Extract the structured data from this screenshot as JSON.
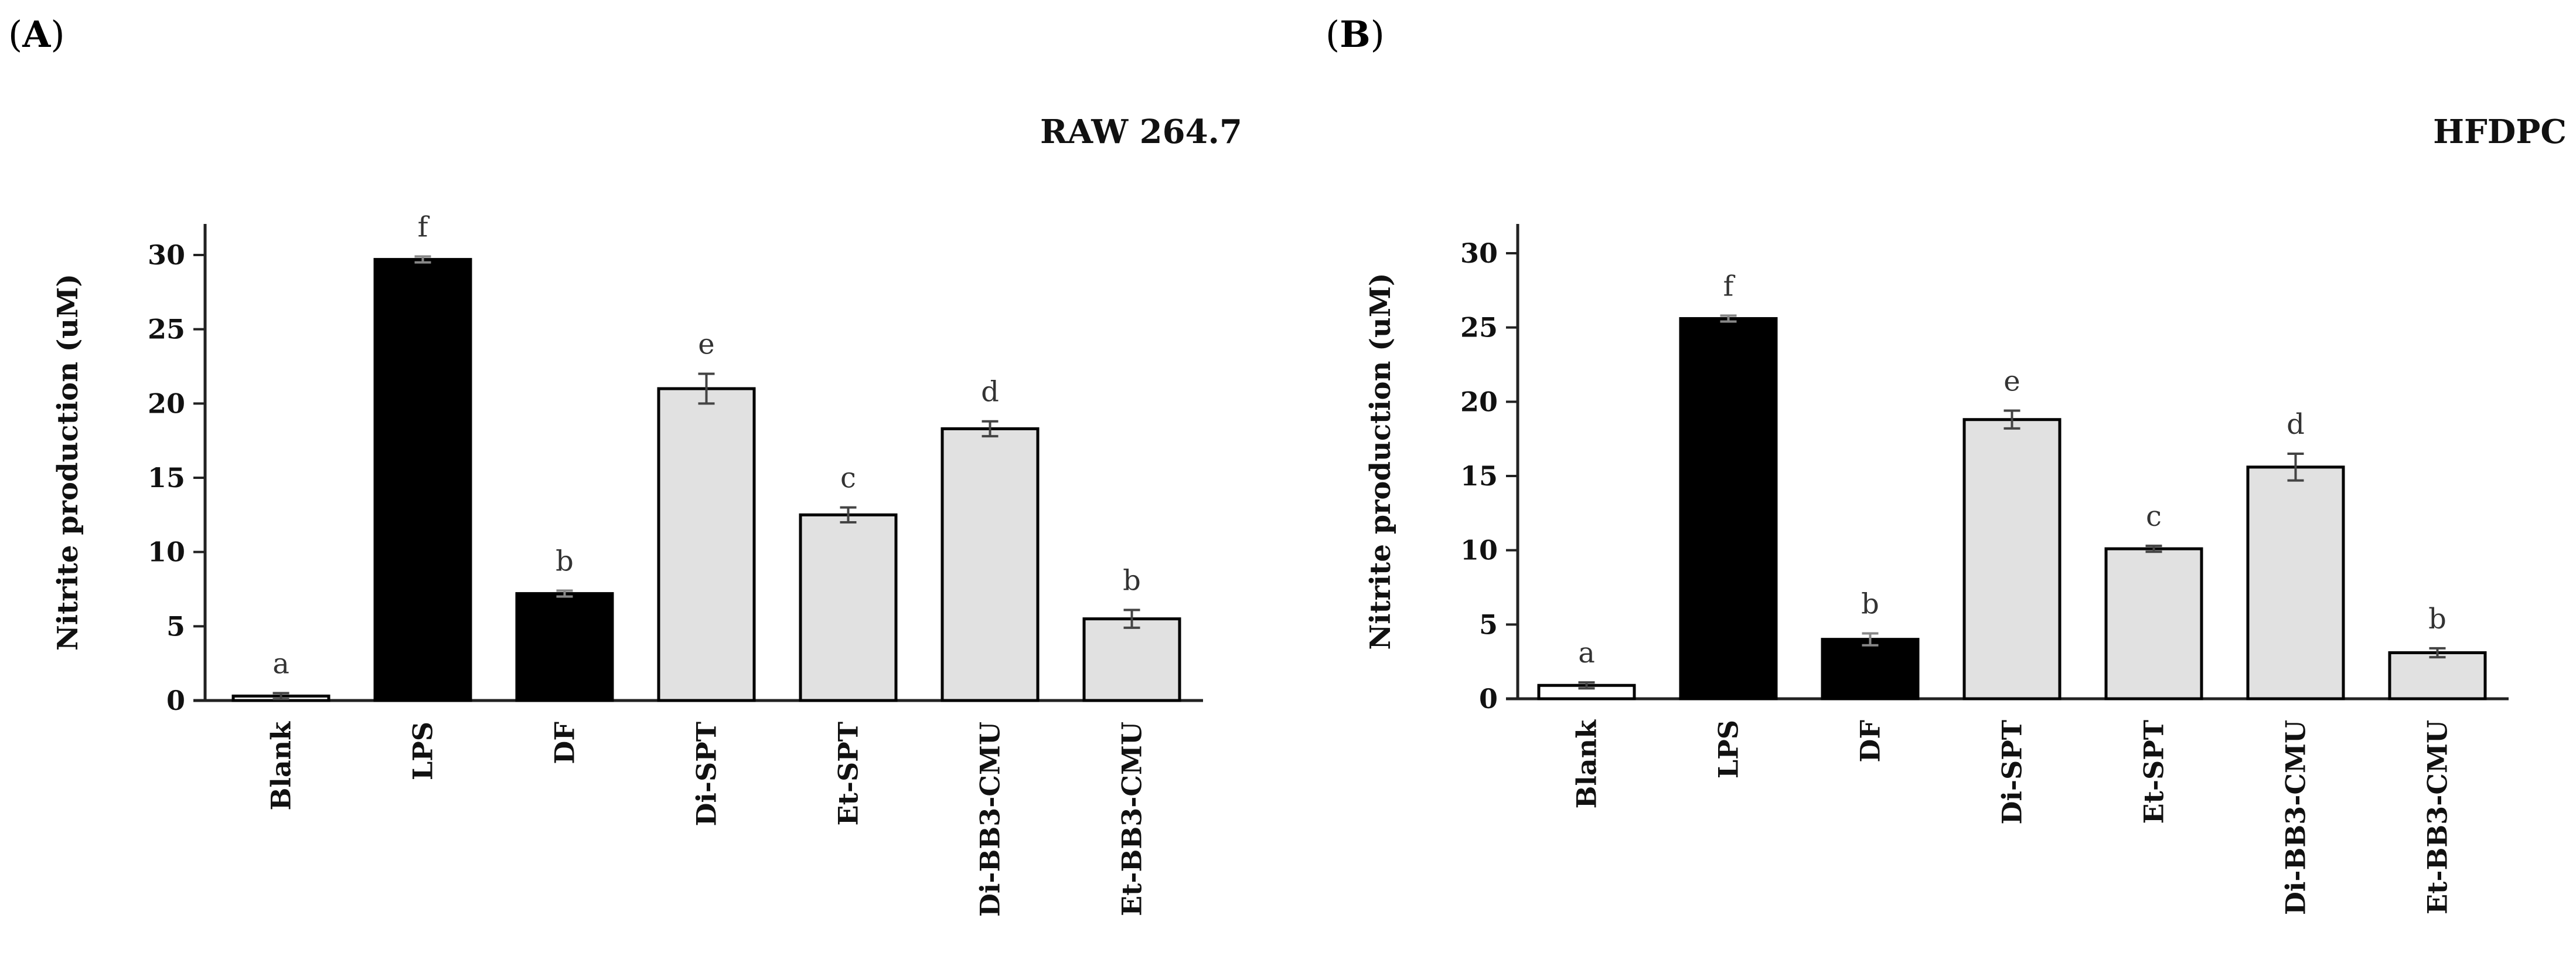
{
  "panels": [
    {
      "label_open": "(",
      "label_letter": "A",
      "label_close": ")",
      "title": "RAW 264.7"
    },
    {
      "label_open": "(",
      "label_letter": "B",
      "label_close": ")",
      "title": "HFDPC"
    }
  ],
  "chart_data": [
    {
      "type": "bar",
      "title": "RAW 264.7",
      "xlabel": "",
      "ylabel": "Nitrite production (uM)",
      "ylim": [
        0,
        30
      ],
      "yticks": [
        0,
        5,
        10,
        15,
        20,
        25,
        30
      ],
      "grid": false,
      "legend": "none",
      "categories": [
        "Blank",
        "LPS",
        "DF",
        "Di-SPT",
        "Et-SPT",
        "Di-BB3-CMU",
        "Et-BB3-CMU"
      ],
      "values": [
        0.3,
        29.7,
        7.2,
        21.0,
        12.5,
        18.3,
        5.5
      ],
      "errors": [
        0.2,
        0.2,
        0.2,
        1.0,
        0.5,
        0.5,
        0.6
      ],
      "significance_letters": [
        "a",
        "f",
        "b",
        "e",
        "c",
        "d",
        "b"
      ],
      "bar_fills": [
        "#ffffff",
        "#000000",
        "#000000",
        "#e1e1e1",
        "#e1e1e1",
        "#e1e1e1",
        "#e1e1e1"
      ]
    },
    {
      "type": "bar",
      "title": "HFDPC",
      "xlabel": "",
      "ylabel": "Nitrite production (uM)",
      "ylim": [
        0,
        30
      ],
      "yticks": [
        0,
        5,
        10,
        15,
        20,
        25,
        30
      ],
      "grid": false,
      "legend": "none",
      "categories": [
        "Blank",
        "LPS",
        "DF",
        "Di-SPT",
        "Et-SPT",
        "Di-BB3-CMU",
        "Et-BB3-CMU"
      ],
      "values": [
        0.9,
        25.6,
        4.0,
        18.8,
        10.1,
        15.6,
        3.1
      ],
      "errors": [
        0.2,
        0.2,
        0.4,
        0.6,
        0.2,
        0.9,
        0.3
      ],
      "significance_letters": [
        "a",
        "f",
        "b",
        "e",
        "c",
        "d",
        "b"
      ],
      "bar_fills": [
        "#ffffff",
        "#000000",
        "#000000",
        "#e1e1e1",
        "#e1e1e1",
        "#e1e1e1",
        "#e1e1e1"
      ]
    }
  ]
}
